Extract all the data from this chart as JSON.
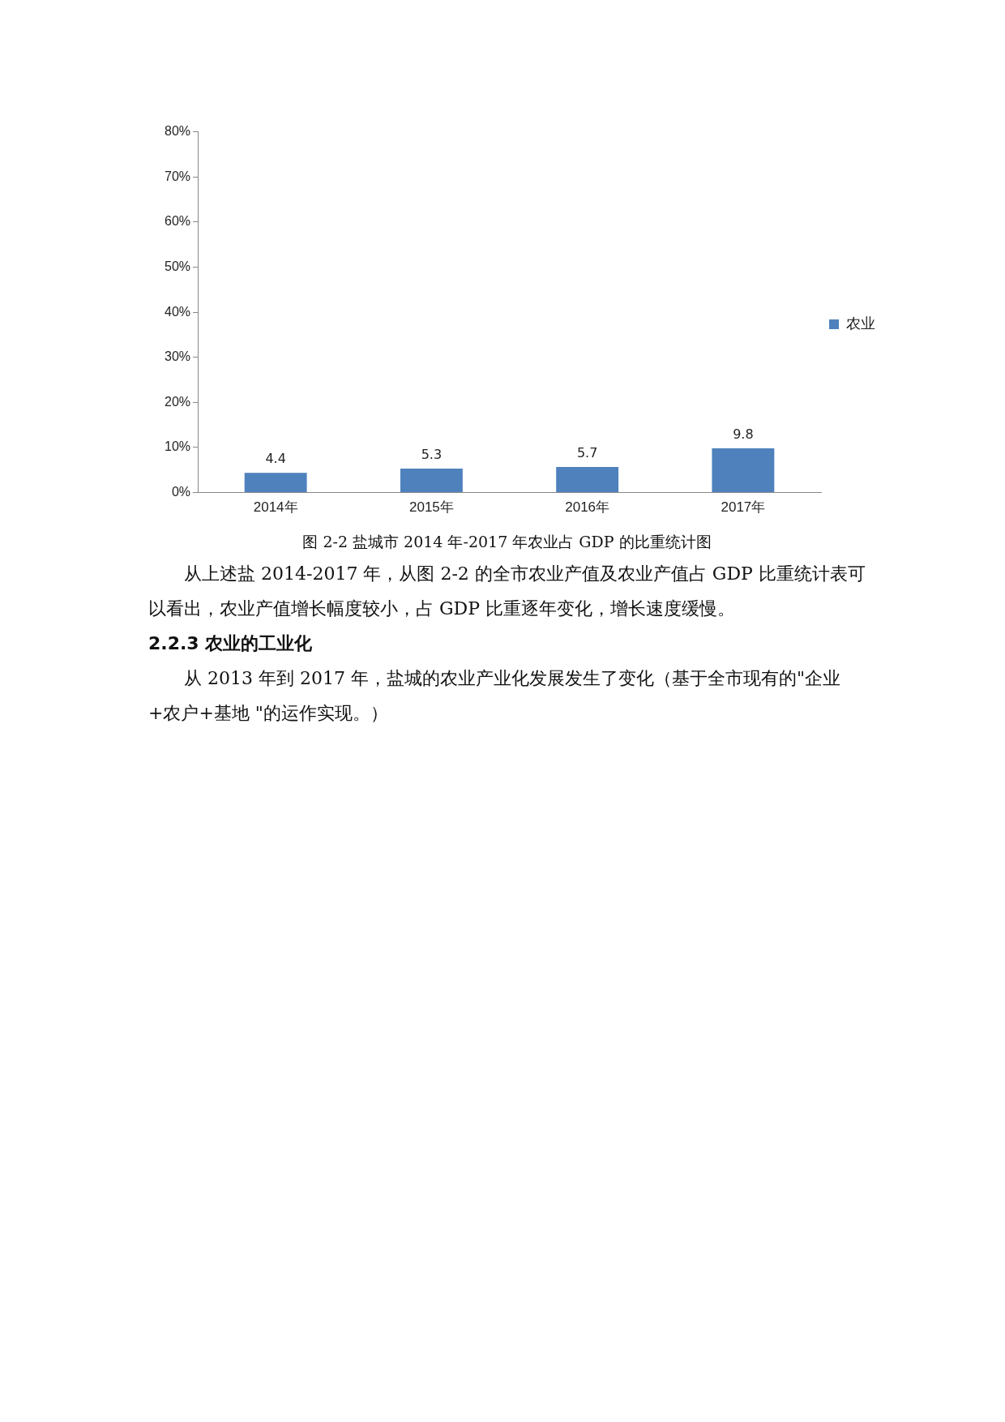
{
  "chart_data": {
    "type": "bar",
    "categories": [
      "2014年",
      "2015年",
      "2016年",
      "2017年"
    ],
    "series": [
      {
        "name": "农业",
        "color": "#4f81bd",
        "values": [
          4.4,
          5.3,
          5.7,
          9.8
        ]
      }
    ],
    "ylim": [
      0,
      80
    ],
    "yticks": [
      {
        "value": 0,
        "label": "0%"
      },
      {
        "value": 10,
        "label": "10%"
      },
      {
        "value": 20,
        "label": "20%"
      },
      {
        "value": 30,
        "label": "30%"
      },
      {
        "value": 40,
        "label": "40%"
      },
      {
        "value": 50,
        "label": "50%"
      },
      {
        "value": 60,
        "label": "60%"
      },
      {
        "value": 70,
        "label": "70%"
      },
      {
        "value": 80,
        "label": "80%"
      }
    ],
    "grid": false,
    "legend": "right",
    "data_labels": true,
    "annotations": [
      "图 2-2 盐城市 2014 年-2017 年农业占 GDP 的比重统计图",
      "从上述盐 2014-2017 年，从图 2-2 的全市农业产值及农业产值占 GDP 比重统计表可以看出，农业产值增长幅度较小，占 GDP 比重逐年变化，增长速度缓慢。",
      "2.2.3 农业的工业化",
      "从 2013 年到 2017 年，盐城的农业产业化发展发生了变化（基于全市现有的\"企业+农户+基地 \"的运作实现。）"
    ]
  }
}
